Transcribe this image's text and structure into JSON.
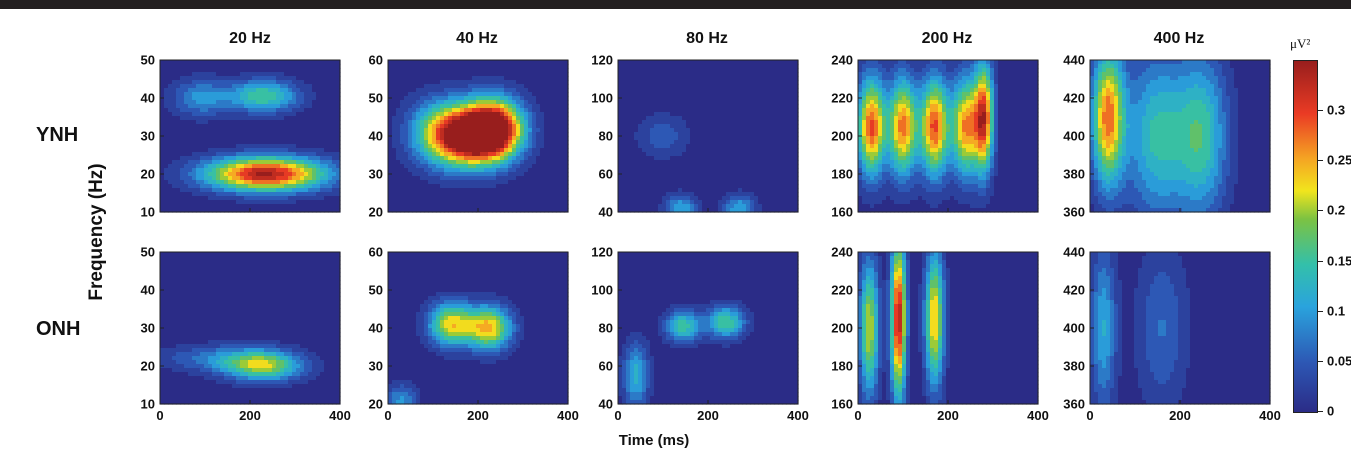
{
  "figure": {
    "row_labels": [
      "YNH",
      "ONH"
    ],
    "col_titles": [
      "20 Hz",
      "40 Hz",
      "80 Hz",
      "200 Hz",
      "400 Hz"
    ],
    "xlabel": "Time (ms)",
    "ylabel": "Frequency (Hz)",
    "colorbar": {
      "unit": "μV²",
      "ticks": [
        "0",
        "0.05",
        "0.1",
        "0.15",
        "0.2",
        "0.25",
        "0.3"
      ],
      "range": [
        0,
        0.35
      ]
    }
  },
  "chart_data": [
    {
      "type": "heatmap",
      "row": "YNH",
      "title": "20 Hz",
      "xlim": [
        0,
        400
      ],
      "xticks": [
        0,
        200,
        400
      ],
      "ylim": [
        10,
        50
      ],
      "yticks": [
        10,
        20,
        30,
        40,
        50
      ],
      "blobs": [
        {
          "x": 235,
          "y": 20,
          "sx": 95,
          "sy": 3.2,
          "peak": 0.35
        },
        {
          "x": 230,
          "y": 40.5,
          "sx": 55,
          "sy": 3.0,
          "peak": 0.17
        },
        {
          "x": 90,
          "y": 40,
          "sx": 45,
          "sy": 3.5,
          "peak": 0.1
        }
      ]
    },
    {
      "type": "heatmap",
      "row": "YNH",
      "title": "40 Hz",
      "xlim": [
        0,
        400
      ],
      "xticks": [
        0,
        200,
        400
      ],
      "ylim": [
        20,
        60
      ],
      "yticks": [
        20,
        30,
        40,
        50,
        60
      ],
      "blobs": [
        {
          "x": 180,
          "y": 40,
          "sx": 55,
          "sy": 5.5,
          "peak": 0.35
        },
        {
          "x": 240,
          "y": 42,
          "sx": 45,
          "sy": 5.5,
          "peak": 0.32
        },
        {
          "x": 110,
          "y": 41,
          "sx": 50,
          "sy": 6,
          "peak": 0.14
        }
      ]
    },
    {
      "type": "heatmap",
      "row": "YNH",
      "title": "80 Hz",
      "xlim": [
        0,
        400
      ],
      "xticks": [
        0,
        200,
        400
      ],
      "ylim": [
        40,
        120
      ],
      "yticks": [
        40,
        60,
        80,
        100,
        120
      ],
      "blobs": [
        {
          "x": 140,
          "y": 42,
          "sx": 25,
          "sy": 5,
          "peak": 0.12
        },
        {
          "x": 270,
          "y": 42,
          "sx": 25,
          "sy": 5,
          "peak": 0.12
        },
        {
          "x": 100,
          "y": 80,
          "sx": 40,
          "sy": 8,
          "peak": 0.06
        }
      ]
    },
    {
      "type": "heatmap",
      "row": "YNH",
      "title": "200 Hz",
      "xlim": [
        0,
        400
      ],
      "xticks": [
        0,
        200,
        400
      ],
      "ylim": [
        160,
        240
      ],
      "yticks": [
        160,
        180,
        200,
        220,
        240
      ],
      "blobs": [
        {
          "x": 30,
          "y": 205,
          "sx": 22,
          "sy": 18,
          "peak": 0.3
        },
        {
          "x": 100,
          "y": 205,
          "sx": 22,
          "sy": 18,
          "peak": 0.28
        },
        {
          "x": 170,
          "y": 205,
          "sx": 22,
          "sy": 18,
          "peak": 0.3
        },
        {
          "x": 240,
          "y": 205,
          "sx": 22,
          "sy": 18,
          "peak": 0.27
        },
        {
          "x": 280,
          "y": 210,
          "sx": 15,
          "sy": 20,
          "peak": 0.3
        }
      ]
    },
    {
      "type": "heatmap",
      "row": "YNH",
      "title": "400 Hz",
      "xlim": [
        0,
        400
      ],
      "xticks": [
        0,
        200,
        400
      ],
      "ylim": [
        360,
        440
      ],
      "yticks": [
        360,
        380,
        400,
        420,
        440
      ],
      "blobs": [
        {
          "x": 40,
          "y": 410,
          "sx": 25,
          "sy": 25,
          "peak": 0.28
        },
        {
          "x": 150,
          "y": 400,
          "sx": 50,
          "sy": 30,
          "peak": 0.15
        },
        {
          "x": 250,
          "y": 400,
          "sx": 40,
          "sy": 30,
          "peak": 0.15
        }
      ]
    },
    {
      "type": "heatmap",
      "row": "ONH",
      "title": "20 Hz",
      "xlim": [
        0,
        400
      ],
      "xticks": [
        0,
        200,
        400
      ],
      "ylim": [
        10,
        50
      ],
      "yticks": [
        10,
        20,
        30,
        40,
        50
      ],
      "blobs": [
        {
          "x": 230,
          "y": 20,
          "sx": 60,
          "sy": 2.8,
          "peak": 0.2
        },
        {
          "x": 130,
          "y": 22,
          "sx": 90,
          "sy": 2.5,
          "peak": 0.08
        }
      ]
    },
    {
      "type": "heatmap",
      "row": "ONH",
      "title": "40 Hz",
      "xlim": [
        0,
        400
      ],
      "xticks": [
        0,
        200,
        400
      ],
      "ylim": [
        20,
        60
      ],
      "yticks": [
        20,
        30,
        40,
        50,
        60
      ],
      "blobs": [
        {
          "x": 140,
          "y": 41,
          "sx": 35,
          "sy": 4,
          "peak": 0.23
        },
        {
          "x": 225,
          "y": 40,
          "sx": 35,
          "sy": 4,
          "peak": 0.25
        },
        {
          "x": 30,
          "y": 21,
          "sx": 25,
          "sy": 3,
          "peak": 0.1
        }
      ]
    },
    {
      "type": "heatmap",
      "row": "ONH",
      "title": "80 Hz",
      "xlim": [
        0,
        400
      ],
      "xticks": [
        0,
        200,
        400
      ],
      "ylim": [
        40,
        120
      ],
      "yticks": [
        40,
        60,
        80,
        100,
        120
      ],
      "blobs": [
        {
          "x": 145,
          "y": 81,
          "sx": 28,
          "sy": 6,
          "peak": 0.16
        },
        {
          "x": 240,
          "y": 83,
          "sx": 30,
          "sy": 6,
          "peak": 0.17
        },
        {
          "x": 40,
          "y": 55,
          "sx": 20,
          "sy": 12,
          "peak": 0.13
        }
      ]
    },
    {
      "type": "heatmap",
      "row": "ONH",
      "title": "200 Hz",
      "xlim": [
        0,
        400
      ],
      "xticks": [
        0,
        200,
        400
      ],
      "ylim": [
        160,
        240
      ],
      "yticks": [
        160,
        180,
        200,
        220,
        240
      ],
      "blobs": [
        {
          "x": 25,
          "y": 200,
          "sx": 15,
          "sy": 25,
          "peak": 0.22
        },
        {
          "x": 90,
          "y": 205,
          "sx": 12,
          "sy": 30,
          "peak": 0.34
        },
        {
          "x": 170,
          "y": 205,
          "sx": 15,
          "sy": 25,
          "peak": 0.25
        }
      ]
    },
    {
      "type": "heatmap",
      "row": "ONH",
      "title": "400 Hz",
      "xlim": [
        0,
        400
      ],
      "xticks": [
        0,
        200,
        400
      ],
      "ylim": [
        360,
        440
      ],
      "yticks": [
        360,
        380,
        400,
        420,
        440
      ],
      "blobs": [
        {
          "x": 30,
          "y": 400,
          "sx": 20,
          "sy": 30,
          "peak": 0.12
        },
        {
          "x": 160,
          "y": 400,
          "sx": 40,
          "sy": 30,
          "peak": 0.07
        }
      ]
    }
  ]
}
